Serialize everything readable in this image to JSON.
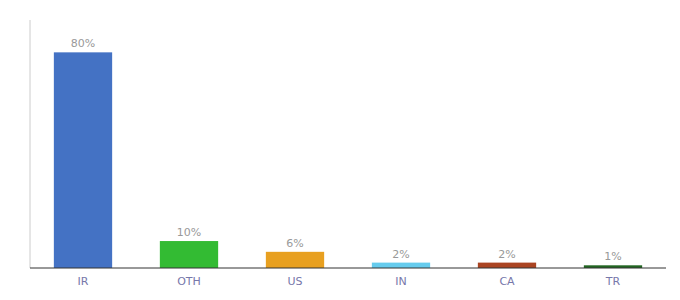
{
  "chart_data": {
    "type": "bar",
    "categories": [
      "IR",
      "OTH",
      "US",
      "IN",
      "CA",
      "TR"
    ],
    "values": [
      80,
      10,
      6,
      2,
      2,
      1
    ],
    "value_labels": [
      "80%",
      "10%",
      "6%",
      "2%",
      "2%",
      "1%"
    ],
    "colors": [
      "#4472c4",
      "#33bb33",
      "#e8a020",
      "#66ccee",
      "#aa4422",
      "#226622"
    ],
    "ylim": [
      0,
      92
    ],
    "tick_labels": "x",
    "data_labels": true,
    "grid": false
  }
}
